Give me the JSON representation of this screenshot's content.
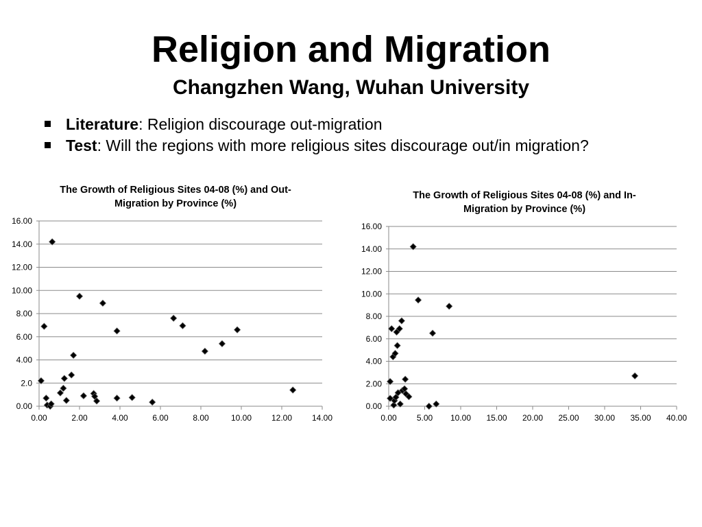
{
  "slide": {
    "title": "Religion and Migration",
    "subtitle": "Changzhen Wang, Wuhan University",
    "bullets": [
      {
        "key": "Literature",
        "text": ": Religion discourage out-migration"
      },
      {
        "key": "Test",
        "text": ": Will the regions with more religious sites discourage out/in migration?"
      }
    ]
  },
  "colors": {
    "marker": "#000000",
    "grid": "#8a8a8a"
  },
  "chart_data": [
    {
      "type": "scatter",
      "title_lines": [
        "The Growth of Religious Sites 04-08 (%) and Out-",
        "Migration by Province (%)"
      ],
      "xlabel": "",
      "ylabel": "",
      "xlim": [
        0,
        14
      ],
      "ylim": [
        0,
        16
      ],
      "x_ticks": [
        "0.00",
        "2.00",
        "4.00",
        "6.00",
        "8.00",
        "10.00",
        "12.00",
        "14.00"
      ],
      "y_ticks": [
        "0.00",
        "2.0",
        "4.00",
        "6.00",
        "8.00",
        "10.00",
        "12.00",
        "14.00",
        "16.00"
      ],
      "grid": true,
      "legend": "none",
      "points": [
        {
          "x": 0.1,
          "y": 2.2
        },
        {
          "x": 0.25,
          "y": 6.9
        },
        {
          "x": 0.35,
          "y": 0.7
        },
        {
          "x": 0.4,
          "y": 0.1
        },
        {
          "x": 0.55,
          "y": 0.0
        },
        {
          "x": 0.6,
          "y": 0.2
        },
        {
          "x": 0.65,
          "y": 14.2
        },
        {
          "x": 1.05,
          "y": 1.15
        },
        {
          "x": 1.2,
          "y": 1.55
        },
        {
          "x": 1.25,
          "y": 2.4
        },
        {
          "x": 1.35,
          "y": 0.5
        },
        {
          "x": 1.6,
          "y": 2.7
        },
        {
          "x": 1.7,
          "y": 4.4
        },
        {
          "x": 2.0,
          "y": 9.5
        },
        {
          "x": 2.2,
          "y": 0.9
        },
        {
          "x": 2.7,
          "y": 1.1
        },
        {
          "x": 2.75,
          "y": 0.85
        },
        {
          "x": 2.85,
          "y": 0.45
        },
        {
          "x": 3.15,
          "y": 8.9
        },
        {
          "x": 3.85,
          "y": 6.5
        },
        {
          "x": 3.85,
          "y": 0.7
        },
        {
          "x": 4.6,
          "y": 0.75
        },
        {
          "x": 5.6,
          "y": 0.35
        },
        {
          "x": 6.65,
          "y": 7.6
        },
        {
          "x": 7.1,
          "y": 6.95
        },
        {
          "x": 8.2,
          "y": 4.75
        },
        {
          "x": 9.05,
          "y": 5.4
        },
        {
          "x": 9.8,
          "y": 6.6
        },
        {
          "x": 12.55,
          "y": 1.4
        }
      ]
    },
    {
      "type": "scatter",
      "title_lines": [
        "The Growth of Religious Sites 04-08 (%) and In-",
        "Migration by Province (%)"
      ],
      "xlabel": "",
      "ylabel": "",
      "xlim": [
        0,
        40
      ],
      "ylim": [
        0,
        16
      ],
      "x_ticks": [
        "0.00",
        "5.00",
        "10.00",
        "15.00",
        "20.00",
        "25.00",
        "30.00",
        "35.00",
        "40.00"
      ],
      "y_ticks": [
        "0.00",
        "2.00",
        "4.00",
        "6.00",
        "8.00",
        "10.00",
        "12.00",
        "14.00",
        "16.00"
      ],
      "grid": true,
      "legend": "none",
      "points": [
        {
          "x": 0.2,
          "y": 2.2
        },
        {
          "x": 0.2,
          "y": 0.7
        },
        {
          "x": 0.4,
          "y": 6.9
        },
        {
          "x": 0.6,
          "y": 4.4
        },
        {
          "x": 0.7,
          "y": 0.1
        },
        {
          "x": 0.8,
          "y": 0.5
        },
        {
          "x": 0.9,
          "y": 4.7
        },
        {
          "x": 1.0,
          "y": 0.8
        },
        {
          "x": 1.1,
          "y": 6.6
        },
        {
          "x": 1.2,
          "y": 5.4
        },
        {
          "x": 1.3,
          "y": 1.2
        },
        {
          "x": 1.5,
          "y": 6.9
        },
        {
          "x": 1.6,
          "y": 0.2
        },
        {
          "x": 1.8,
          "y": 7.6
        },
        {
          "x": 1.9,
          "y": 1.4
        },
        {
          "x": 2.2,
          "y": 1.55
        },
        {
          "x": 2.3,
          "y": 2.4
        },
        {
          "x": 2.4,
          "y": 1.1
        },
        {
          "x": 2.8,
          "y": 0.85
        },
        {
          "x": 3.4,
          "y": 14.2
        },
        {
          "x": 4.1,
          "y": 9.45
        },
        {
          "x": 5.6,
          "y": 0.0
        },
        {
          "x": 6.1,
          "y": 6.5
        },
        {
          "x": 6.6,
          "y": 0.2
        },
        {
          "x": 8.4,
          "y": 8.9
        },
        {
          "x": 34.2,
          "y": 2.7
        }
      ]
    }
  ]
}
